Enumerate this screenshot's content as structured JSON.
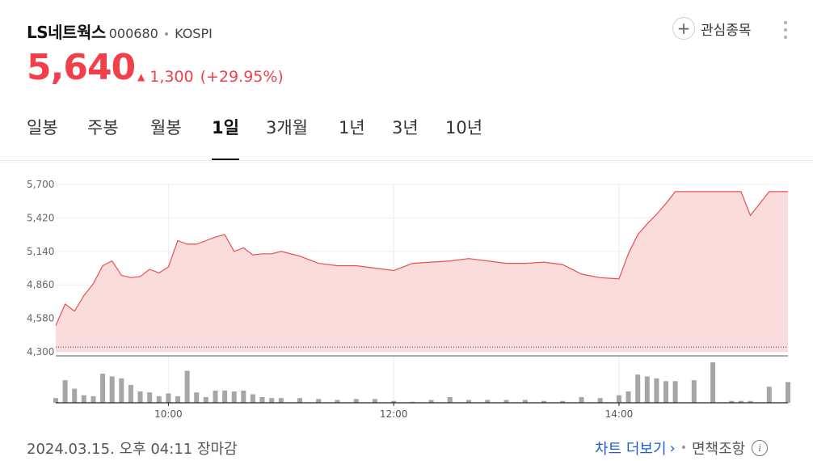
{
  "stock": {
    "name": "LS네트웍스",
    "code": "000680",
    "market": "KOSPI",
    "price": "5,640",
    "change": "1,300",
    "change_pct": "(+29.95%)",
    "favorite_label": "관심종목"
  },
  "tabs": [
    {
      "label": "일봉"
    },
    {
      "label": "주봉"
    },
    {
      "label": "월봉"
    },
    {
      "label": "1일",
      "active": true
    },
    {
      "label": "3개월"
    },
    {
      "label": "1년"
    },
    {
      "label": "3년"
    },
    {
      "label": "10년"
    }
  ],
  "footer": {
    "timestamp": "2024.03.15. 오후 04:11 장마감",
    "chart_more": "차트 더보기",
    "disclaimer": "면책조항"
  },
  "colors": {
    "up": "#f2404a",
    "line": "#e85050",
    "area": "#fadcdc",
    "volume": "#a6a6a6",
    "link": "#1a5fd0"
  },
  "chart_data": {
    "type": "line",
    "title": "",
    "xlabel": "",
    "ylabel": "",
    "ylim": [
      4300,
      5700
    ],
    "y_ticks": [
      "5,700",
      "5,420",
      "5,140",
      "4,860",
      "4,580",
      "4,300"
    ],
    "y_tick_values": [
      5700,
      5420,
      5140,
      4860,
      4580,
      4300
    ],
    "x_ticks": [
      {
        "label": "10:00",
        "x": "10:00"
      },
      {
        "label": "12:00",
        "x": "12:00"
      },
      {
        "label": "14:00",
        "x": "14:00"
      }
    ],
    "x_range": [
      "09:00",
      "15:30"
    ],
    "grid": true,
    "reference_line": 4340,
    "series": [
      {
        "x": [
          "09:00",
          "09:05",
          "09:10",
          "09:15",
          "09:20",
          "09:25",
          "09:30",
          "09:35",
          "09:40",
          "09:45",
          "09:50",
          "09:55",
          "10:00",
          "10:05",
          "10:10",
          "10:15",
          "10:20",
          "10:25",
          "10:30",
          "10:35",
          "10:40",
          "10:45",
          "10:50",
          "10:55",
          "11:00",
          "11:10",
          "11:20",
          "11:30",
          "11:40",
          "11:50",
          "12:00",
          "12:10",
          "12:20",
          "12:30",
          "12:40",
          "12:50",
          "13:00",
          "13:10",
          "13:20",
          "13:30",
          "13:40",
          "13:50",
          "14:00",
          "14:05",
          "14:10",
          "14:15",
          "14:20",
          "14:25",
          "14:30",
          "14:40",
          "14:50",
          "15:00",
          "15:05",
          "15:10",
          "15:20",
          "15:30"
        ],
        "y": [
          4520,
          4700,
          4640,
          4770,
          4870,
          5020,
          5060,
          4940,
          4920,
          4930,
          4990,
          4960,
          5010,
          5230,
          5200,
          5200,
          5230,
          5260,
          5280,
          5140,
          5170,
          5110,
          5120,
          5120,
          5140,
          5100,
          5040,
          5020,
          5020,
          5000,
          4980,
          5040,
          5050,
          5060,
          5080,
          5060,
          5040,
          5040,
          5050,
          5030,
          4950,
          4920,
          4910,
          5120,
          5280,
          5370,
          5450,
          5540,
          5640,
          5640,
          5640,
          5640,
          5640,
          5440,
          5640,
          5640
        ]
      }
    ],
    "volume": {
      "x": [
        "09:00",
        "09:05",
        "09:10",
        "09:15",
        "09:20",
        "09:25",
        "09:30",
        "09:35",
        "09:40",
        "09:45",
        "09:50",
        "09:55",
        "10:00",
        "10:05",
        "10:10",
        "10:15",
        "10:20",
        "10:25",
        "10:30",
        "10:35",
        "10:40",
        "10:45",
        "10:50",
        "10:55",
        "11:00",
        "11:10",
        "11:20",
        "11:30",
        "11:40",
        "11:50",
        "12:00",
        "12:10",
        "12:20",
        "12:30",
        "12:40",
        "12:50",
        "13:00",
        "13:10",
        "13:20",
        "13:30",
        "13:40",
        "13:50",
        "14:00",
        "14:05",
        "14:10",
        "14:15",
        "14:20",
        "14:25",
        "14:30",
        "14:40",
        "14:50",
        "15:00",
        "15:05",
        "15:10",
        "15:20",
        "15:30"
      ],
      "values": [
        10,
        48,
        30,
        16,
        14,
        62,
        56,
        52,
        38,
        24,
        22,
        14,
        20,
        14,
        68,
        22,
        12,
        26,
        26,
        24,
        26,
        18,
        12,
        10,
        10,
        10,
        8,
        6,
        8,
        8,
        4,
        2,
        6,
        12,
        6,
        6,
        6,
        6,
        4,
        4,
        12,
        10,
        16,
        24,
        60,
        56,
        52,
        46,
        46,
        48,
        86,
        4,
        4,
        4,
        34,
        44
      ]
    }
  }
}
